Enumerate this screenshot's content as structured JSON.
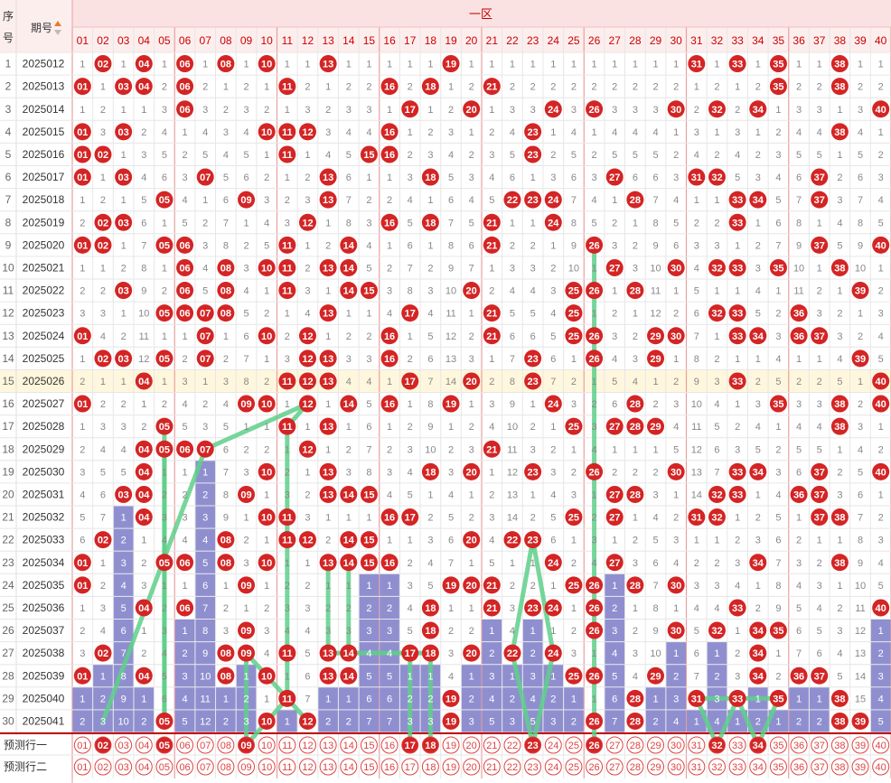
{
  "header": {
    "seq_label_1": "序",
    "seq_label_2": "号",
    "issue_label": "期号",
    "zone_label": "一区"
  },
  "columns": [
    "01",
    "02",
    "03",
    "04",
    "05",
    "06",
    "07",
    "08",
    "09",
    "10",
    "11",
    "12",
    "13",
    "14",
    "15",
    "16",
    "17",
    "18",
    "19",
    "20",
    "21",
    "22",
    "23",
    "24",
    "25",
    "26",
    "27",
    "28",
    "29",
    "30",
    "31",
    "32",
    "33",
    "34",
    "35",
    "36",
    "37",
    "38",
    "39",
    "40"
  ],
  "rows": [
    {
      "seq": "1",
      "issue": "2025012",
      "balls": [
        2,
        4,
        6,
        8,
        10,
        13,
        19,
        31,
        33,
        35,
        38
      ]
    },
    {
      "seq": "2",
      "issue": "2025013",
      "balls": [
        1,
        3,
        4,
        6,
        11,
        16,
        18,
        21,
        35,
        38
      ]
    },
    {
      "seq": "3",
      "issue": "2025014",
      "balls": [
        6,
        17,
        20,
        24,
        26,
        30,
        32,
        34,
        40
      ]
    },
    {
      "seq": "4",
      "issue": "2025015",
      "balls": [
        1,
        3,
        10,
        11,
        12,
        16,
        23,
        38
      ]
    },
    {
      "seq": "5",
      "issue": "2025016",
      "balls": [
        1,
        2,
        11,
        15,
        16,
        23
      ]
    },
    {
      "seq": "6",
      "issue": "2025017",
      "balls": [
        1,
        3,
        7,
        13,
        18,
        27,
        31,
        32,
        37
      ]
    },
    {
      "seq": "7",
      "issue": "2025018",
      "balls": [
        5,
        9,
        13,
        22,
        23,
        24,
        28,
        33,
        34,
        37
      ]
    },
    {
      "seq": "8",
      "issue": "2025019",
      "balls": [
        2,
        3,
        12,
        16,
        18,
        21,
        24,
        33
      ]
    },
    {
      "seq": "9",
      "issue": "2025020",
      "balls": [
        1,
        2,
        5,
        6,
        11,
        14,
        21,
        26,
        37,
        40
      ]
    },
    {
      "seq": "10",
      "issue": "2025021",
      "balls": [
        6,
        8,
        10,
        11,
        13,
        14,
        27,
        30,
        32,
        33,
        35,
        38
      ]
    },
    {
      "seq": "11",
      "issue": "2025022",
      "balls": [
        3,
        6,
        8,
        11,
        14,
        15,
        20,
        25,
        26,
        28,
        39
      ]
    },
    {
      "seq": "12",
      "issue": "2025023",
      "balls": [
        5,
        6,
        7,
        8,
        13,
        17,
        21,
        25,
        32,
        33,
        36
      ]
    },
    {
      "seq": "13",
      "issue": "2025024",
      "balls": [
        1,
        7,
        10,
        12,
        16,
        21,
        25,
        26,
        29,
        30,
        33,
        34,
        36,
        37
      ]
    },
    {
      "seq": "14",
      "issue": "2025025",
      "balls": [
        2,
        3,
        5,
        7,
        12,
        13,
        16,
        23,
        26,
        29,
        39
      ]
    },
    {
      "seq": "15",
      "issue": "2025026",
      "balls": [
        4,
        11,
        12,
        13,
        17,
        20,
        23,
        33,
        40
      ]
    },
    {
      "seq": "16",
      "issue": "2025027",
      "balls": [
        1,
        9,
        10,
        12,
        14,
        16,
        19,
        24,
        28,
        35,
        38,
        40
      ]
    },
    {
      "seq": "17",
      "issue": "2025028",
      "balls": [
        5,
        11,
        13,
        25,
        27,
        28,
        29,
        38
      ]
    },
    {
      "seq": "18",
      "issue": "2025029",
      "balls": [
        4,
        5,
        6,
        7,
        12,
        21
      ]
    },
    {
      "seq": "19",
      "issue": "2025030",
      "balls": [
        4,
        10,
        13,
        18,
        20,
        23,
        26,
        30,
        33,
        34,
        37,
        40
      ]
    },
    {
      "seq": "20",
      "issue": "2025031",
      "balls": [
        3,
        4,
        9,
        13,
        14,
        15,
        27,
        28,
        32,
        33,
        36,
        37
      ]
    },
    {
      "seq": "21",
      "issue": "2025032",
      "balls": [
        4,
        10,
        11,
        16,
        17,
        25,
        27,
        31,
        32,
        37,
        38
      ]
    },
    {
      "seq": "22",
      "issue": "2025033",
      "balls": [
        2,
        8,
        11,
        12,
        14,
        15,
        20,
        22,
        23
      ]
    },
    {
      "seq": "23",
      "issue": "2025034",
      "balls": [
        1,
        5,
        6,
        8,
        10,
        13,
        14,
        15,
        16,
        24,
        27,
        34,
        38
      ]
    },
    {
      "seq": "24",
      "issue": "2025035",
      "balls": [
        1,
        9,
        19,
        20,
        21,
        25,
        26,
        28,
        30
      ]
    },
    {
      "seq": "25",
      "issue": "2025036",
      "balls": [
        4,
        6,
        18,
        21,
        23,
        24,
        26,
        33,
        40
      ]
    },
    {
      "seq": "26",
      "issue": "2025037",
      "balls": [
        9,
        18,
        26,
        30,
        32,
        34,
        35
      ]
    },
    {
      "seq": "27",
      "issue": "2025038",
      "balls": [
        2,
        8,
        9,
        11,
        13,
        14,
        17,
        18,
        20,
        22,
        24,
        34
      ]
    },
    {
      "seq": "28",
      "issue": "2025039",
      "balls": [
        1,
        4,
        8,
        10,
        13,
        14,
        25,
        26,
        29,
        34,
        36,
        37
      ]
    },
    {
      "seq": "29",
      "issue": "2025040",
      "balls": [
        11,
        19,
        28,
        31,
        33,
        35,
        38
      ]
    },
    {
      "seq": "30",
      "issue": "2025041",
      "balls": [
        5,
        10,
        12,
        19,
        26,
        28,
        38,
        39
      ]
    }
  ],
  "highlight_row": "15",
  "predict_rows": [
    {
      "label": "预测行一",
      "picked": [
        2,
        5,
        9,
        17,
        18,
        23,
        26,
        32,
        34
      ]
    },
    {
      "label": "预测行二",
      "picked": []
    }
  ],
  "colors": {
    "header_bg": "#fdeeee",
    "header_text": "#c00000",
    "ball": "#d42424",
    "miss_bar": "#8f8fd0",
    "trend_line": "#5fd08a",
    "highlight_row": "#fff7dd",
    "group_border": "#e8a0a0"
  }
}
